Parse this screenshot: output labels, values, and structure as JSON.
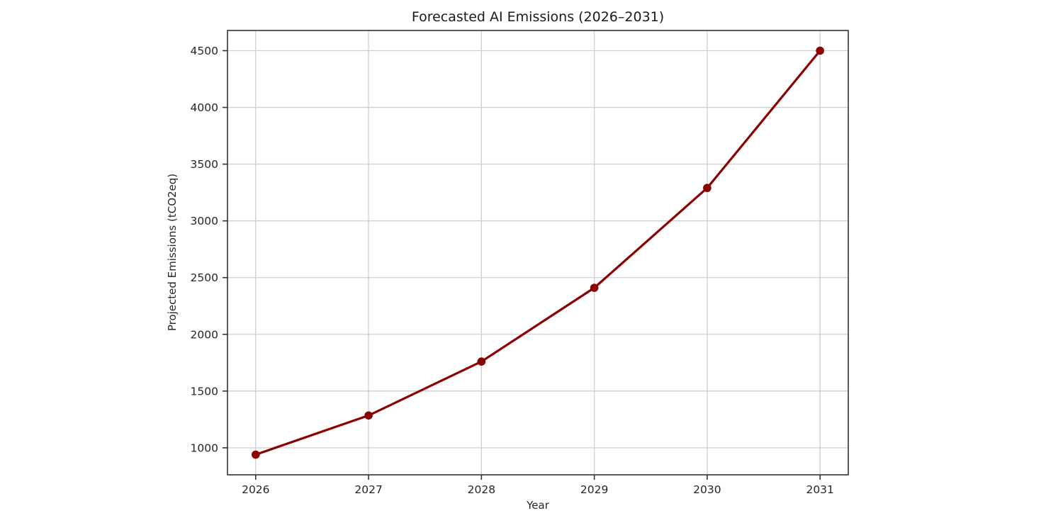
{
  "chart_data": {
    "type": "line",
    "title": "Forecasted AI Emissions (2026–2031)",
    "xlabel": "Year",
    "ylabel": "Projected Emissions (tCO2eq)",
    "x": [
      2026,
      2027,
      2028,
      2029,
      2030,
      2031
    ],
    "values": [
      940,
      1285,
      1760,
      2410,
      3290,
      4500
    ],
    "xticks": [
      2026,
      2027,
      2028,
      2029,
      2030,
      2031
    ],
    "yticks": [
      1000,
      1500,
      2000,
      2500,
      3000,
      3500,
      4000,
      4500
    ],
    "xlim": [
      2025.75,
      2031.25
    ],
    "ylim": [
      762,
      4678
    ],
    "grid": true,
    "legend": "none",
    "marker": "circle",
    "colors": {
      "line": "#8b0000",
      "marker": "#8b0000",
      "grid": "#cfcfcf",
      "frame": "#333333",
      "text": "#262626",
      "background": "#ffffff"
    }
  }
}
